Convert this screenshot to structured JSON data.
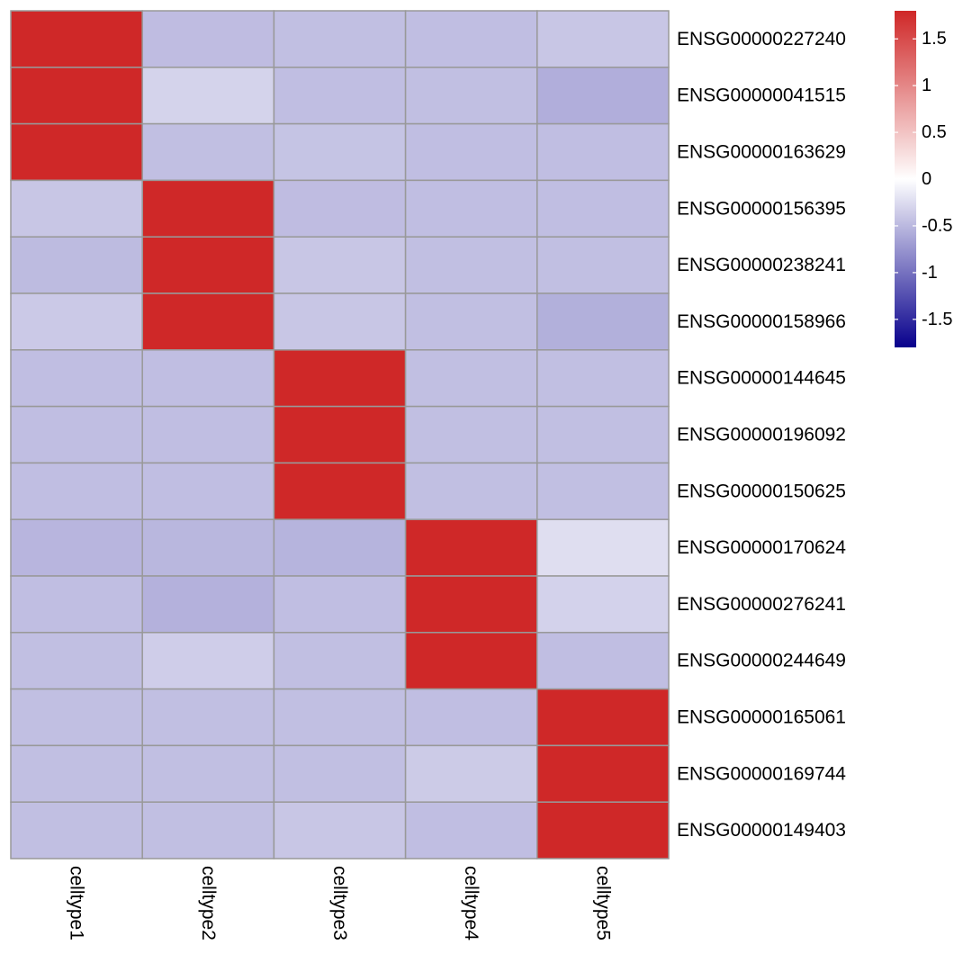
{
  "chart_data": {
    "type": "heatmap",
    "title": "",
    "xlabel": "",
    "ylabel": "",
    "columns": [
      "celltype1",
      "celltype2",
      "celltype3",
      "celltype4",
      "celltype5"
    ],
    "rows": [
      "ENSG00000227240",
      "ENSG00000041515",
      "ENSG00000163629",
      "ENSG00000156395",
      "ENSG00000238241",
      "ENSG00000158966",
      "ENSG00000144645",
      "ENSG00000196092",
      "ENSG00000150625",
      "ENSG00000170624",
      "ENSG00000276241",
      "ENSG00000244649",
      "ENSG00000165061",
      "ENSG00000169744",
      "ENSG00000149403"
    ],
    "values": [
      [
        1.79,
        -0.47,
        -0.45,
        -0.46,
        -0.4
      ],
      [
        1.79,
        -0.31,
        -0.46,
        -0.45,
        -0.57
      ],
      [
        1.79,
        -0.45,
        -0.42,
        -0.46,
        -0.46
      ],
      [
        -0.4,
        1.79,
        -0.47,
        -0.46,
        -0.46
      ],
      [
        -0.48,
        1.79,
        -0.4,
        -0.45,
        -0.45
      ],
      [
        -0.38,
        1.79,
        -0.4,
        -0.45,
        -0.56
      ],
      [
        -0.46,
        -0.46,
        1.79,
        -0.45,
        -0.45
      ],
      [
        -0.46,
        -0.46,
        1.79,
        -0.45,
        -0.45
      ],
      [
        -0.46,
        -0.46,
        1.79,
        -0.45,
        -0.45
      ],
      [
        -0.52,
        -0.51,
        -0.53,
        1.79,
        -0.23
      ],
      [
        -0.46,
        -0.55,
        -0.46,
        1.79,
        -0.32
      ],
      [
        -0.45,
        -0.35,
        -0.45,
        1.79,
        -0.46
      ],
      [
        -0.45,
        -0.45,
        -0.45,
        -0.46,
        1.79
      ],
      [
        -0.45,
        -0.45,
        -0.45,
        -0.37,
        1.79
      ],
      [
        -0.45,
        -0.45,
        -0.4,
        -0.46,
        1.79
      ]
    ],
    "color_scale": {
      "min": -1.8,
      "max": 1.8,
      "low_color": "#08008C",
      "mid_color": "#FFFFFF",
      "high_color": "#CF2727"
    },
    "legend": {
      "placement": "top-right",
      "ticks": [
        1.5,
        1,
        0.5,
        0,
        -0.5,
        -1,
        -1.5
      ],
      "tick_labels": [
        "1.5",
        "1",
        "0.5",
        "0",
        "-0.5",
        "-1",
        "-1.5"
      ]
    },
    "grid": true,
    "grid_color": "#999999"
  }
}
